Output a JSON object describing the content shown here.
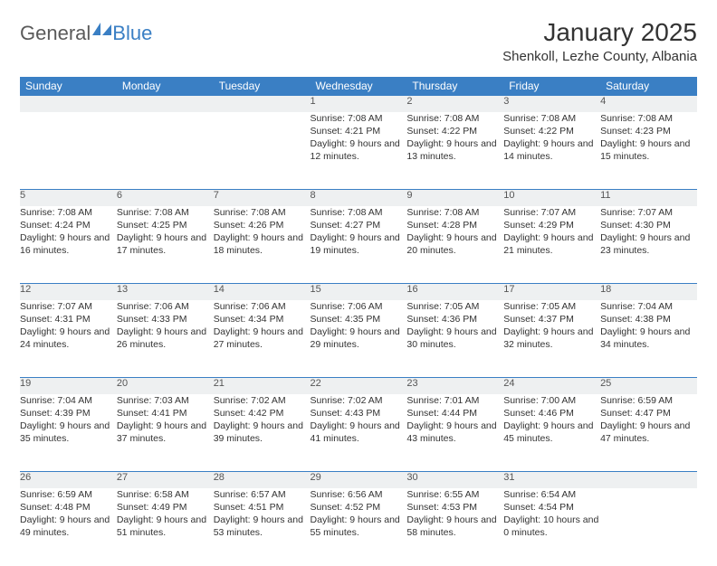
{
  "brand": {
    "name_a": "General",
    "name_b": "Blue"
  },
  "title": "January 2025",
  "location": "Shenkoll, Lezhe County, Albania",
  "colors": {
    "header_bg": "#3a7fc4",
    "header_text": "#ffffff",
    "daynum_bg": "#eef0f1",
    "border": "#3a7fc4",
    "text": "#333333",
    "logo_gray": "#5a5a5a",
    "logo_blue": "#3a7fc4",
    "background": "#ffffff"
  },
  "day_labels": [
    "Sunday",
    "Monday",
    "Tuesday",
    "Wednesday",
    "Thursday",
    "Friday",
    "Saturday"
  ],
  "weeks": [
    [
      null,
      null,
      null,
      {
        "n": "1",
        "sr": "7:08 AM",
        "ss": "4:21 PM",
        "dl": "9 hours and 12 minutes."
      },
      {
        "n": "2",
        "sr": "7:08 AM",
        "ss": "4:22 PM",
        "dl": "9 hours and 13 minutes."
      },
      {
        "n": "3",
        "sr": "7:08 AM",
        "ss": "4:22 PM",
        "dl": "9 hours and 14 minutes."
      },
      {
        "n": "4",
        "sr": "7:08 AM",
        "ss": "4:23 PM",
        "dl": "9 hours and 15 minutes."
      }
    ],
    [
      {
        "n": "5",
        "sr": "7:08 AM",
        "ss": "4:24 PM",
        "dl": "9 hours and 16 minutes."
      },
      {
        "n": "6",
        "sr": "7:08 AM",
        "ss": "4:25 PM",
        "dl": "9 hours and 17 minutes."
      },
      {
        "n": "7",
        "sr": "7:08 AM",
        "ss": "4:26 PM",
        "dl": "9 hours and 18 minutes."
      },
      {
        "n": "8",
        "sr": "7:08 AM",
        "ss": "4:27 PM",
        "dl": "9 hours and 19 minutes."
      },
      {
        "n": "9",
        "sr": "7:08 AM",
        "ss": "4:28 PM",
        "dl": "9 hours and 20 minutes."
      },
      {
        "n": "10",
        "sr": "7:07 AM",
        "ss": "4:29 PM",
        "dl": "9 hours and 21 minutes."
      },
      {
        "n": "11",
        "sr": "7:07 AM",
        "ss": "4:30 PM",
        "dl": "9 hours and 23 minutes."
      }
    ],
    [
      {
        "n": "12",
        "sr": "7:07 AM",
        "ss": "4:31 PM",
        "dl": "9 hours and 24 minutes."
      },
      {
        "n": "13",
        "sr": "7:06 AM",
        "ss": "4:33 PM",
        "dl": "9 hours and 26 minutes."
      },
      {
        "n": "14",
        "sr": "7:06 AM",
        "ss": "4:34 PM",
        "dl": "9 hours and 27 minutes."
      },
      {
        "n": "15",
        "sr": "7:06 AM",
        "ss": "4:35 PM",
        "dl": "9 hours and 29 minutes."
      },
      {
        "n": "16",
        "sr": "7:05 AM",
        "ss": "4:36 PM",
        "dl": "9 hours and 30 minutes."
      },
      {
        "n": "17",
        "sr": "7:05 AM",
        "ss": "4:37 PM",
        "dl": "9 hours and 32 minutes."
      },
      {
        "n": "18",
        "sr": "7:04 AM",
        "ss": "4:38 PM",
        "dl": "9 hours and 34 minutes."
      }
    ],
    [
      {
        "n": "19",
        "sr": "7:04 AM",
        "ss": "4:39 PM",
        "dl": "9 hours and 35 minutes."
      },
      {
        "n": "20",
        "sr": "7:03 AM",
        "ss": "4:41 PM",
        "dl": "9 hours and 37 minutes."
      },
      {
        "n": "21",
        "sr": "7:02 AM",
        "ss": "4:42 PM",
        "dl": "9 hours and 39 minutes."
      },
      {
        "n": "22",
        "sr": "7:02 AM",
        "ss": "4:43 PM",
        "dl": "9 hours and 41 minutes."
      },
      {
        "n": "23",
        "sr": "7:01 AM",
        "ss": "4:44 PM",
        "dl": "9 hours and 43 minutes."
      },
      {
        "n": "24",
        "sr": "7:00 AM",
        "ss": "4:46 PM",
        "dl": "9 hours and 45 minutes."
      },
      {
        "n": "25",
        "sr": "6:59 AM",
        "ss": "4:47 PM",
        "dl": "9 hours and 47 minutes."
      }
    ],
    [
      {
        "n": "26",
        "sr": "6:59 AM",
        "ss": "4:48 PM",
        "dl": "9 hours and 49 minutes."
      },
      {
        "n": "27",
        "sr": "6:58 AM",
        "ss": "4:49 PM",
        "dl": "9 hours and 51 minutes."
      },
      {
        "n": "28",
        "sr": "6:57 AM",
        "ss": "4:51 PM",
        "dl": "9 hours and 53 minutes."
      },
      {
        "n": "29",
        "sr": "6:56 AM",
        "ss": "4:52 PM",
        "dl": "9 hours and 55 minutes."
      },
      {
        "n": "30",
        "sr": "6:55 AM",
        "ss": "4:53 PM",
        "dl": "9 hours and 58 minutes."
      },
      {
        "n": "31",
        "sr": "6:54 AM",
        "ss": "4:54 PM",
        "dl": "10 hours and 0 minutes."
      },
      null
    ]
  ],
  "labels": {
    "sunrise": "Sunrise:",
    "sunset": "Sunset:",
    "daylight": "Daylight:"
  }
}
